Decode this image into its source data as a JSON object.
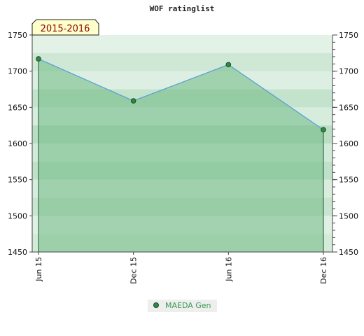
{
  "chart_data": {
    "type": "area",
    "title": "WOF ratinglist",
    "period_label": "2015-2016",
    "x": [
      "Jun 15",
      "Dec 15",
      "Jun 16",
      "Dec 16"
    ],
    "series": [
      {
        "name": "MAEDA Gen",
        "values": [
          1717,
          1659,
          1709,
          1619
        ]
      }
    ],
    "ylim": [
      1450,
      1750
    ],
    "yticks": [
      1450,
      1500,
      1550,
      1600,
      1650,
      1700,
      1750
    ],
    "grid": true,
    "legend_position": "bottom-center",
    "y_axis_both_sides": true,
    "colors": {
      "line": "#5aa2d6",
      "marker": "#2f8a47",
      "area_fill": "#6fba84",
      "band_light": "#eaf6ec",
      "band_dark": "#7cc190",
      "period_bg": "#ffffcc",
      "period_text": "#8b0000"
    }
  }
}
